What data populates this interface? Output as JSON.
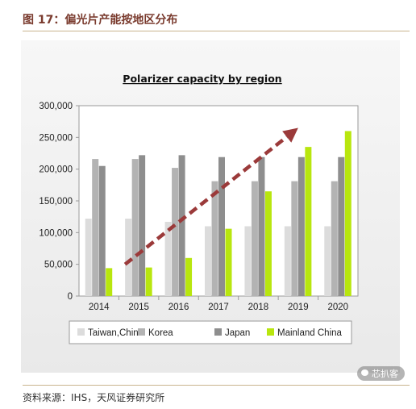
{
  "figure": {
    "header": "图 17：偏光片产能按地区分布",
    "source": "资料来源：IHS，天风证券研究所",
    "watermark": "芯扒客"
  },
  "chart_data": {
    "type": "bar",
    "title": "Polarizer capacity by region",
    "xlabel": "",
    "ylabel": "",
    "categories": [
      "2014",
      "2015",
      "2016",
      "2017",
      "2018",
      "2019",
      "2020"
    ],
    "ylim": [
      0,
      300000
    ],
    "yticks": [
      "0",
      "50,000",
      "100,000",
      "150,000",
      "200,000",
      "250,000",
      "300,000"
    ],
    "grid": false,
    "legend_position": "bottom",
    "series": [
      {
        "name": "Taiwan,China",
        "color": "#dcdcdc",
        "values": [
          122000,
          122000,
          117000,
          110000,
          110000,
          110000,
          110000
        ]
      },
      {
        "name": "Korea",
        "color": "#b3b3b3",
        "values": [
          216000,
          216000,
          202000,
          181000,
          181000,
          181000,
          181000
        ]
      },
      {
        "name": "Japan",
        "color": "#8e8e8e",
        "values": [
          205000,
          222000,
          222000,
          219000,
          219000,
          219000,
          219000
        ]
      },
      {
        "name": "Mainland China",
        "color": "#b8e60e",
        "values": [
          44000,
          45000,
          60000,
          106000,
          165000,
          235000,
          260000
        ]
      }
    ],
    "annotations": [
      {
        "type": "trend-arrow",
        "color": "#9b3a3a",
        "style": "dashed",
        "from": {
          "x": "2015",
          "y": 50000
        },
        "to": {
          "x": "2020",
          "y": 265000
        }
      }
    ]
  }
}
